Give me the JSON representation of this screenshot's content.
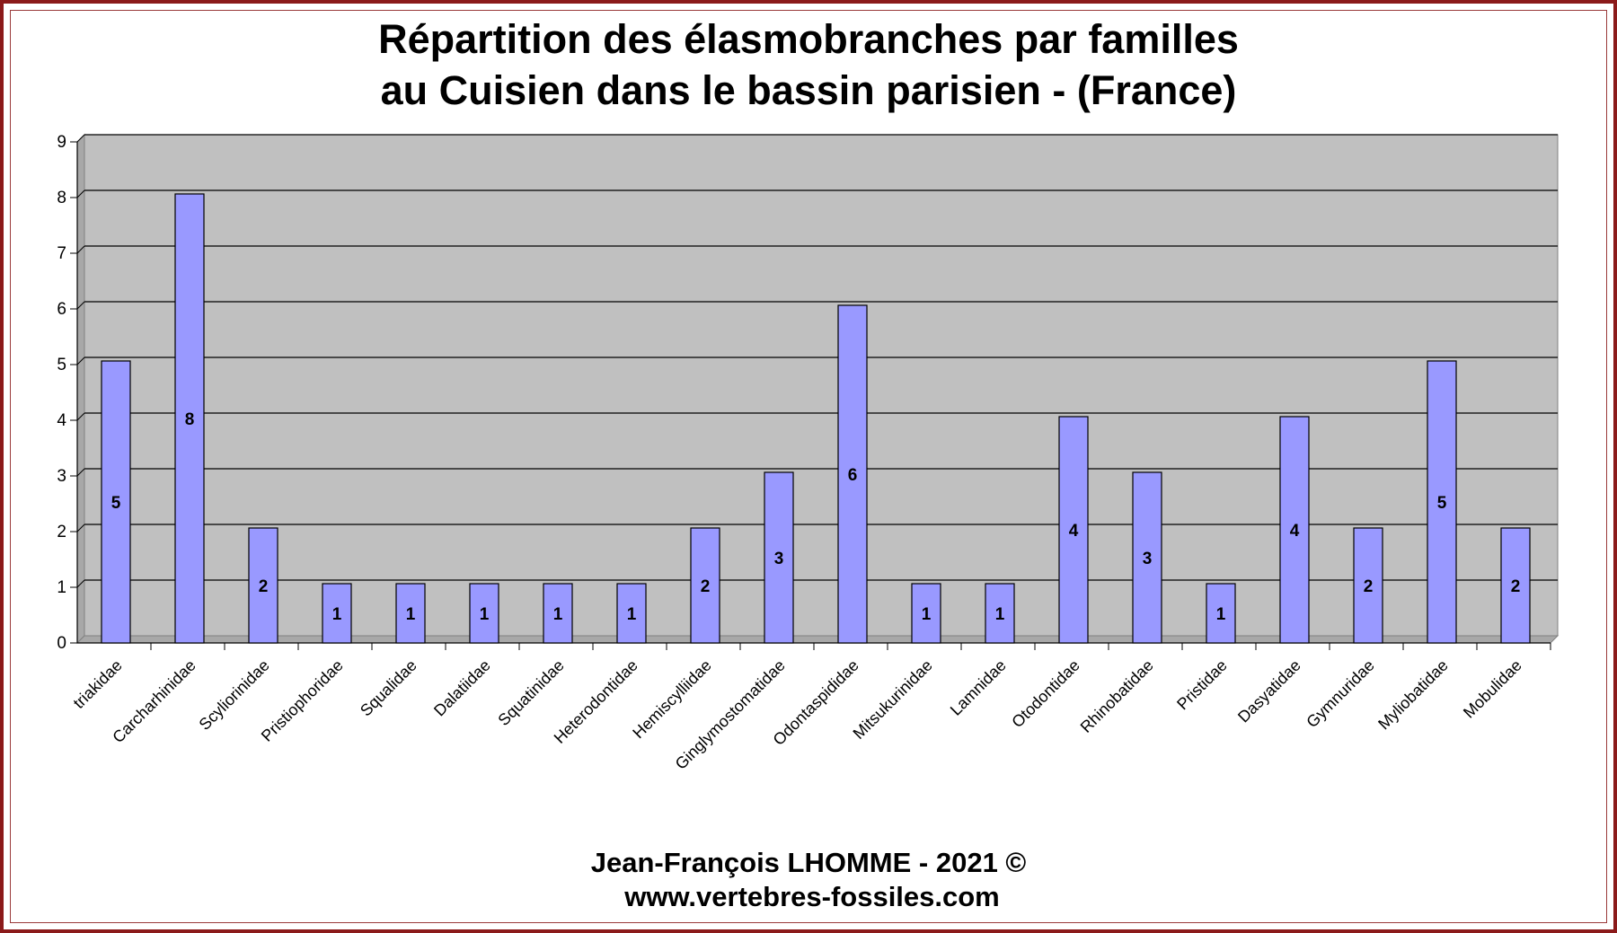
{
  "chart_data": {
    "type": "bar",
    "title_lines": [
      "Répartition des élasmobranches par familles",
      "au Cuisien dans le bassin parisien - (France)"
    ],
    "categories": [
      "triakidae",
      "Carcharhinidae",
      "Scyliorinidae",
      "Pristiophoridae",
      "Squalidae",
      "Dalatiidae",
      "Squatinidae",
      "Heterodontidae",
      "Hemiscylliidae",
      "Ginglymostomatidae",
      "Odontaspididae",
      "Mitsukurinidae",
      "Lamnidae",
      "Otodontidae",
      "Rhinobatidae",
      "Pristidae",
      "Dasyatidae",
      "Gymnuridae",
      "Myliobatidae",
      "Mobulidae"
    ],
    "values": [
      5,
      8,
      2,
      1,
      1,
      1,
      1,
      1,
      2,
      3,
      6,
      1,
      1,
      4,
      3,
      1,
      4,
      2,
      5,
      2
    ],
    "ylim": [
      0,
      9
    ],
    "yticks": [
      0,
      1,
      2,
      3,
      4,
      5,
      6,
      7,
      8,
      9
    ],
    "grid": true,
    "legend": "none",
    "data_labels": "center",
    "colors": {
      "bar_fill": "#9999ff",
      "bar_stroke": "#000000",
      "plot_background": "#c0c0c0",
      "gridline": "#000000",
      "frame": "#8b1a1a"
    }
  },
  "credits": {
    "line1": "Jean-François LHOMME  -  2021 ©",
    "line2": "www.vertebres-fossiles.com"
  }
}
